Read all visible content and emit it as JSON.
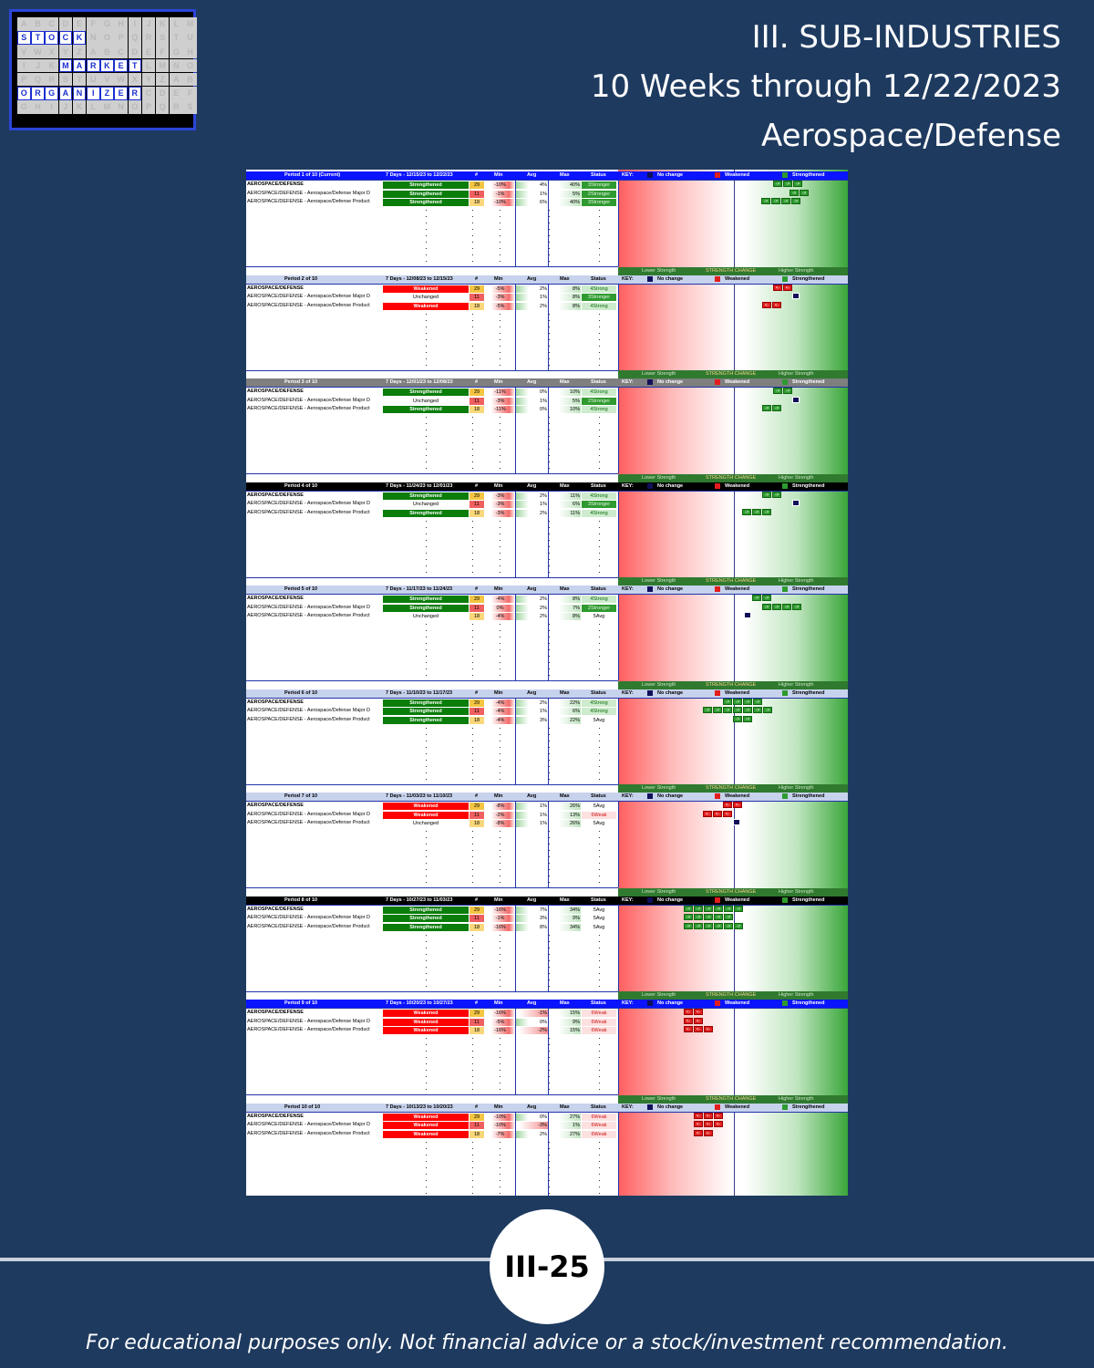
{
  "logo": {
    "rows": [
      [
        "A",
        "B",
        "C",
        "D",
        "E",
        "F",
        "G",
        "H",
        "I",
        "J",
        "K",
        "L",
        "M"
      ],
      [
        "S",
        "T",
        "O",
        "C",
        "K",
        "N",
        "O",
        "P",
        "Q",
        "R",
        "S",
        "T",
        "U"
      ],
      [
        "V",
        "W",
        "X",
        "Y",
        "Z",
        "A",
        "B",
        "C",
        "D",
        "E",
        "F",
        "G",
        "H"
      ],
      [
        "I",
        "J",
        "K",
        "M",
        "A",
        "R",
        "K",
        "E",
        "T",
        "L",
        "M",
        "N",
        "O"
      ],
      [
        "P",
        "Q",
        "R",
        "S",
        "T",
        "U",
        "V",
        "W",
        "X",
        "Y",
        "Z",
        "A",
        "B"
      ],
      [
        "O",
        "R",
        "G",
        "A",
        "N",
        "I",
        "Z",
        "E",
        "R",
        "C",
        "D",
        "E",
        "F"
      ],
      [
        "G",
        "H",
        "I",
        "J",
        "K",
        "L",
        "M",
        "N",
        "O",
        "P",
        "Q",
        "R",
        "S"
      ]
    ],
    "lit": [
      [
        1,
        0
      ],
      [
        1,
        1
      ],
      [
        1,
        2
      ],
      [
        1,
        3
      ],
      [
        1,
        4
      ],
      [
        3,
        3
      ],
      [
        3,
        4
      ],
      [
        3,
        5
      ],
      [
        3,
        6
      ],
      [
        3,
        7
      ],
      [
        3,
        8
      ],
      [
        5,
        0
      ],
      [
        5,
        1
      ],
      [
        5,
        2
      ],
      [
        5,
        3
      ],
      [
        5,
        4
      ],
      [
        5,
        5
      ],
      [
        5,
        6
      ],
      [
        5,
        7
      ],
      [
        5,
        8
      ]
    ]
  },
  "title": {
    "line1": "III. SUB-INDUSTRIES",
    "line2": "10 Weeks through 12/22/2023",
    "line3": "Aerospace/Defense"
  },
  "legend": {
    "lower": "Lower Strength",
    "change": "STRENGTH CHANGE",
    "higher": "Higher Strength",
    "key": "KEY:",
    "no_change": "No change",
    "weakened": "Weakened",
    "strengthened": "Strengthened"
  },
  "col_headers": {
    "num": "#",
    "min": "Min",
    "avg": "Avg",
    "max": "Max",
    "status": "Status"
  },
  "colors": {
    "strengthened": "#0a7d0a",
    "weakened": "#ff0000",
    "unchanged": "#ffffff",
    "header_blue": "#0000ff"
  },
  "periods": [
    {
      "label": "Period 1 of 10 (Current)",
      "dates": "7 Days - 12/15/23 to 12/22/23",
      "head_color": "#0a14ff",
      "head_text": "#ffffff",
      "rows": [
        {
          "name": "AEROSPACE/DEFENSE",
          "bold": true,
          "change": "Strengthened",
          "num": "29",
          "min": "-10%",
          "avg": "4%",
          "max": "40%",
          "status": "3Stronger",
          "arrows": {
            "type": "g",
            "count": 3,
            "pos": 170
          }
        },
        {
          "name": "AEROSPACE/DEFENSE - Aerospace/Defense Major D",
          "change": "Strengthened",
          "num": "11",
          "min": "-1%",
          "avg": "1%",
          "max": "5%",
          "status": "2Stronger",
          "arrows": {
            "type": "g",
            "count": 2,
            "pos": 188
          }
        },
        {
          "name": "AEROSPACE/DEFENSE - Aerospace/Defense Product",
          "change": "Strengthened",
          "num": "18",
          "min": "-10%",
          "avg": "6%",
          "max": "40%",
          "status": "3Stronger",
          "arrows": {
            "type": "g",
            "count": 4,
            "pos": 157
          }
        }
      ]
    },
    {
      "label": "Period 2 of 10",
      "dates": "7 Days - 12/08/23 to 12/15/23",
      "head_color": "#c7d2ec",
      "head_text": "#000000",
      "rows": [
        {
          "name": "AEROSPACE/DEFENSE",
          "bold": true,
          "change": "Weakened",
          "num": "29",
          "min": "-5%",
          "avg": "2%",
          "max": "8%",
          "status": "4Strong",
          "arrows": {
            "type": "r",
            "count": 2,
            "pos": 170
          }
        },
        {
          "name": "AEROSPACE/DEFENSE - Aerospace/Defense Major D",
          "change": "Unchanged",
          "num": "11",
          "min": "-3%",
          "avg": "1%",
          "max": "8%",
          "status": "3Stronger",
          "arrows": {
            "type": "n",
            "count": 1,
            "pos": 191
          }
        },
        {
          "name": "AEROSPACE/DEFENSE - Aerospace/Defense Product",
          "change": "Weakened",
          "num": "18",
          "min": "-5%",
          "avg": "2%",
          "max": "8%",
          "status": "4Strong",
          "arrows": {
            "type": "r",
            "count": 2,
            "pos": 158
          }
        }
      ]
    },
    {
      "label": "Period 3 of 10",
      "dates": "7 Days - 12/01/23 to 12/08/23",
      "head_color": "#7f7f7f",
      "head_text": "#ffffff",
      "rows": [
        {
          "name": "AEROSPACE/DEFENSE",
          "bold": true,
          "change": "Strengthened",
          "num": "29",
          "min": "-11%",
          "avg": "0%",
          "max": "10%",
          "status": "4Strong",
          "arrows": {
            "type": "g",
            "count": 2,
            "pos": 170
          }
        },
        {
          "name": "AEROSPACE/DEFENSE - Aerospace/Defense Major D",
          "change": "Unchanged",
          "num": "11",
          "min": "-3%",
          "avg": "1%",
          "max": "5%",
          "status": "2Stronger",
          "arrows": {
            "type": "n",
            "count": 1,
            "pos": 191
          }
        },
        {
          "name": "AEROSPACE/DEFENSE - Aerospace/Defense Product",
          "change": "Strengthened",
          "num": "18",
          "min": "-11%",
          "avg": "0%",
          "max": "10%",
          "status": "4Strong",
          "arrows": {
            "type": "g",
            "count": 2,
            "pos": 158
          }
        }
      ]
    },
    {
      "label": "Period 4 of 10",
      "dates": "7 Days - 11/24/23 to 12/01/23",
      "head_color": "#000000",
      "head_text": "#ffffff",
      "rows": [
        {
          "name": "AEROSPACE/DEFENSE",
          "bold": true,
          "change": "Strengthened",
          "num": "29",
          "min": "-3%",
          "avg": "2%",
          "max": "11%",
          "status": "4Strong",
          "arrows": {
            "type": "g",
            "count": 2,
            "pos": 158
          }
        },
        {
          "name": "AEROSPACE/DEFENSE - Aerospace/Defense Major D",
          "change": "Unchanged",
          "num": "11",
          "min": "-3%",
          "avg": "1%",
          "max": "6%",
          "status": "3Stronger",
          "arrows": {
            "type": "n",
            "count": 1,
            "pos": 191
          }
        },
        {
          "name": "AEROSPACE/DEFENSE - Aerospace/Defense Product",
          "change": "Strengthened",
          "num": "18",
          "min": "-3%",
          "avg": "2%",
          "max": "11%",
          "status": "4Strong",
          "arrows": {
            "type": "g",
            "count": 3,
            "pos": 136
          }
        }
      ]
    },
    {
      "label": "Period 5 of 10",
      "dates": "7 Days - 11/17/23 to 11/24/23",
      "head_color": "#c7d2ec",
      "head_text": "#000000",
      "rows": [
        {
          "name": "AEROSPACE/DEFENSE",
          "bold": true,
          "change": "Strengthened",
          "num": "29",
          "min": "-4%",
          "avg": "2%",
          "max": "8%",
          "status": "4Strong",
          "arrows": {
            "type": "g",
            "count": 2,
            "pos": 147
          }
        },
        {
          "name": "AEROSPACE/DEFENSE - Aerospace/Defense Major D",
          "change": "Strengthened",
          "num": "11",
          "min": "0%",
          "avg": "2%",
          "max": "7%",
          "status": "2Stronger",
          "arrows": {
            "type": "g",
            "count": 4,
            "pos": 158
          }
        },
        {
          "name": "AEROSPACE/DEFENSE - Aerospace/Defense Product",
          "change": "Unchanged",
          "num": "18",
          "min": "-4%",
          "avg": "2%",
          "max": "8%",
          "status": "5Avg",
          "arrows": {
            "type": "n",
            "count": 1,
            "pos": 138
          }
        }
      ]
    },
    {
      "label": "Period 6 of 10",
      "dates": "7 Days - 11/10/23 to 11/17/23",
      "head_color": "#c7d2ec",
      "head_text": "#000000",
      "rows": [
        {
          "name": "AEROSPACE/DEFENSE",
          "bold": true,
          "change": "Strengthened",
          "num": "29",
          "min": "-4%",
          "avg": "2%",
          "max": "22%",
          "status": "4Strong",
          "arrows": {
            "type": "g",
            "count": 4,
            "pos": 115
          }
        },
        {
          "name": "AEROSPACE/DEFENSE - Aerospace/Defense Major D",
          "change": "Strengthened",
          "num": "11",
          "min": "-4%",
          "avg": "1%",
          "max": "6%",
          "status": "4Strong",
          "arrows": {
            "type": "g",
            "count": 7,
            "pos": 93
          }
        },
        {
          "name": "AEROSPACE/DEFENSE - Aerospace/Defense Product",
          "change": "Strengthened",
          "num": "18",
          "min": "-4%",
          "avg": "3%",
          "max": "22%",
          "status": "5Avg",
          "arrows": {
            "type": "g",
            "count": 2,
            "pos": 126
          }
        }
      ]
    },
    {
      "label": "Period 7 of 10",
      "dates": "7 Days - 11/03/23 to 11/10/23",
      "head_color": "#c7d2ec",
      "head_text": "#000000",
      "rows": [
        {
          "name": "AEROSPACE/DEFENSE",
          "bold": true,
          "change": "Weakened",
          "num": "29",
          "min": "-8%",
          "avg": "1%",
          "max": "26%",
          "status": "5Avg",
          "arrows": {
            "type": "r",
            "count": 2,
            "pos": 115
          }
        },
        {
          "name": "AEROSPACE/DEFENSE - Aerospace/Defense Major D",
          "change": "Weakened",
          "num": "11",
          "min": "-2%",
          "avg": "1%",
          "max": "13%",
          "status": "6Weak",
          "arrows": {
            "type": "r",
            "count": 3,
            "pos": 93
          }
        },
        {
          "name": "AEROSPACE/DEFENSE - Aerospace/Defense Product",
          "change": "Unchanged",
          "num": "18",
          "min": "-8%",
          "avg": "1%",
          "max": "26%",
          "status": "5Avg",
          "arrows": {
            "type": "n",
            "count": 1,
            "pos": 126
          }
        }
      ]
    },
    {
      "label": "Period 8 of 10",
      "dates": "7 Days - 10/27/23 to 11/03/23",
      "head_color": "#000000",
      "head_text": "#ffffff",
      "rows": [
        {
          "name": "AEROSPACE/DEFENSE",
          "bold": true,
          "change": "Strengthened",
          "num": "29",
          "min": "-16%",
          "avg": "7%",
          "max": "34%",
          "status": "5Avg",
          "arrows": {
            "type": "g",
            "count": 6,
            "pos": 72
          }
        },
        {
          "name": "AEROSPACE/DEFENSE - Aerospace/Defense Major D",
          "change": "Strengthened",
          "num": "11",
          "min": "-1%",
          "avg": "3%",
          "max": "9%",
          "status": "5Avg",
          "arrows": {
            "type": "g",
            "count": 5,
            "pos": 72
          }
        },
        {
          "name": "AEROSPACE/DEFENSE - Aerospace/Defense Product",
          "change": "Strengthened",
          "num": "18",
          "min": "-16%",
          "avg": "8%",
          "max": "34%",
          "status": "5Avg",
          "arrows": {
            "type": "g",
            "count": 6,
            "pos": 72
          }
        }
      ]
    },
    {
      "label": "Period 9 of 10",
      "dates": "7 Days - 10/20/23 to 10/27/23",
      "head_color": "#0a14ff",
      "head_text": "#ffffff",
      "rows": [
        {
          "name": "AEROSPACE/DEFENSE",
          "bold": true,
          "change": "Weakened",
          "num": "29",
          "min": "-16%",
          "avg": "-1%",
          "max": "15%",
          "status": "6Weak",
          "arrows": {
            "type": "r",
            "count": 2,
            "pos": 72
          }
        },
        {
          "name": "AEROSPACE/DEFENSE - Aerospace/Defense Major D",
          "change": "Weakened",
          "num": "11",
          "min": "-5%",
          "avg": "0%",
          "max": "9%",
          "status": "6Weak",
          "arrows": {
            "type": "r",
            "count": 2,
            "pos": 72
          }
        },
        {
          "name": "AEROSPACE/DEFENSE - Aerospace/Defense Product",
          "change": "Weakened",
          "num": "18",
          "min": "-16%",
          "avg": "-2%",
          "max": "15%",
          "status": "6Weak",
          "arrows": {
            "type": "r",
            "count": 3,
            "pos": 72
          }
        }
      ]
    },
    {
      "label": "Period 10 of 10",
      "dates": "7 Days - 10/13/23 to 10/20/23",
      "head_color": "#c7d2ec",
      "head_text": "#000000",
      "rows": [
        {
          "name": "AEROSPACE/DEFENSE",
          "bold": true,
          "change": "Weakened",
          "num": "29",
          "min": "-10%",
          "avg": "0%",
          "max": "27%",
          "status": "6Weak",
          "arrows": {
            "type": "r",
            "count": 3,
            "pos": 83
          }
        },
        {
          "name": "AEROSPACE/DEFENSE - Aerospace/Defense Major D",
          "change": "Weakened",
          "num": "11",
          "min": "-10%",
          "avg": "-3%",
          "max": "1%",
          "status": "6Weak",
          "arrows": {
            "type": "r",
            "count": 3,
            "pos": 83
          }
        },
        {
          "name": "AEROSPACE/DEFENSE - Aerospace/Defense Product",
          "change": "Weakened",
          "num": "18",
          "min": "-7%",
          "avg": "2%",
          "max": "27%",
          "status": "6Weak",
          "arrows": {
            "type": "r",
            "count": 2,
            "pos": 83
          }
        }
      ]
    }
  ],
  "page_number": "III-25",
  "disclaimer": "For educational purposes only. Not financial advice or a stock/investment recommendation."
}
